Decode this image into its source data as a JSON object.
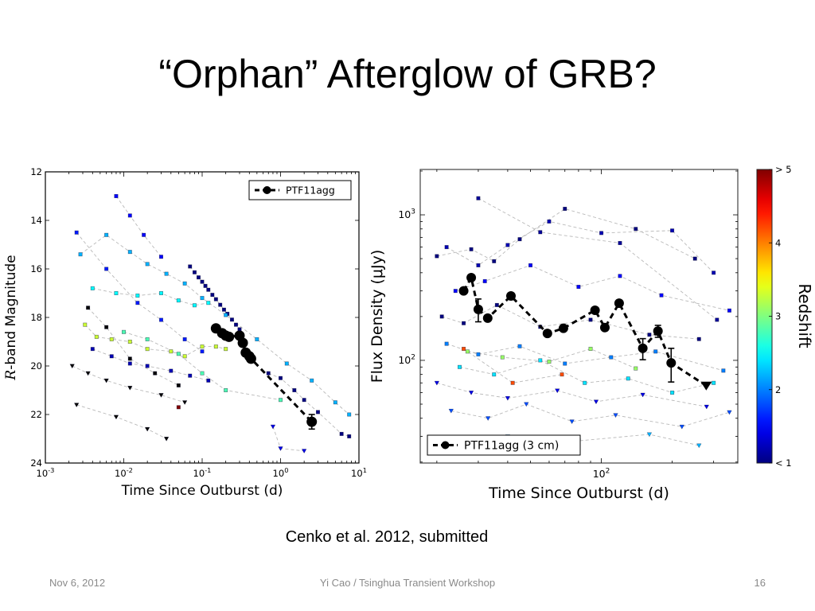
{
  "slide": {
    "title": "“Orphan” Afterglow of GRB?",
    "caption": "Cenko et al. 2012, submitted",
    "footer": {
      "date": "Nov 6, 2012",
      "center": "Yi Cao / Tsinghua Transient Workshop",
      "page": "16"
    }
  },
  "chart_data": [
    {
      "type": "scatter",
      "xlabel": "Time Since Outburst (d)",
      "ylabel_symbol": "R",
      "ylabel_rest": "-band Magnitude",
      "xscale": "log",
      "yscale": "linear",
      "xlim": [
        0.001,
        10
      ],
      "ylim": [
        12,
        24
      ],
      "y_inverted": true,
      "grid": false,
      "xticks": [
        {
          "value": 0.001,
          "base": "10",
          "exp": "-3"
        },
        {
          "value": 0.01,
          "base": "10",
          "exp": "-2"
        },
        {
          "value": 0.1,
          "base": "10",
          "exp": "-1"
        },
        {
          "value": 1,
          "base": "10",
          "exp": "0"
        },
        {
          "value": 10,
          "base": "10",
          "exp": "1"
        }
      ],
      "yticks": [
        12,
        14,
        16,
        18,
        20,
        22,
        24
      ],
      "legend": {
        "label": "PTF11agg",
        "placement": "top-right"
      },
      "highlight": {
        "points": [
          {
            "t": 0.15,
            "v": 18.45
          },
          {
            "t": 0.18,
            "v": 18.65
          },
          {
            "t": 0.2,
            "v": 18.75
          },
          {
            "t": 0.22,
            "v": 18.8
          },
          {
            "t": 0.3,
            "v": 18.75
          },
          {
            "t": 0.33,
            "v": 19.05
          },
          {
            "t": 0.36,
            "v": 19.45
          },
          {
            "t": 0.4,
            "v": 19.6
          },
          {
            "t": 0.42,
            "v": 19.7
          },
          {
            "t": 2.5,
            "v": 22.3,
            "err": 0.3
          }
        ],
        "limits": []
      },
      "background": [
        {
          "z": 0.9,
          "marker": "square",
          "points": [
            [
              0.07,
              15.9
            ],
            [
              0.08,
              16.14
            ],
            [
              0.09,
              16.35
            ],
            [
              0.1,
              16.53
            ],
            [
              0.11,
              16.7
            ],
            [
              0.12,
              16.86
            ],
            [
              0.135,
              17.07
            ],
            [
              0.15,
              17.25
            ],
            [
              0.17,
              17.48
            ],
            [
              0.19,
              17.68
            ],
            [
              0.21,
              17.85
            ],
            [
              0.24,
              18.09
            ],
            [
              0.27,
              18.3
            ],
            [
              0.3,
              18.49
            ]
          ]
        },
        {
          "z": 2.2,
          "marker": "square",
          "points": [
            [
              0.0028,
              15.4
            ],
            [
              0.006,
              14.6
            ],
            [
              0.012,
              15.3
            ],
            [
              0.02,
              15.8
            ],
            [
              0.035,
              16.2
            ],
            [
              0.06,
              16.6
            ],
            [
              0.1,
              17.2
            ],
            [
              0.2,
              17.9
            ],
            [
              0.5,
              18.9
            ],
            [
              1.2,
              19.9
            ],
            [
              2.5,
              20.6
            ],
            [
              5,
              21.5
            ],
            [
              7.5,
              22.0
            ]
          ]
        },
        {
          "z": 2.5,
          "marker": "square",
          "points": [
            [
              0.004,
              16.8
            ],
            [
              0.008,
              17.0
            ],
            [
              0.015,
              17.1
            ],
            [
              0.03,
              17.0
            ],
            [
              0.05,
              17.3
            ],
            [
              0.08,
              17.5
            ],
            [
              0.12,
              17.4
            ]
          ]
        },
        {
          "z": 3.3,
          "marker": "square",
          "points": [
            [
              0.0032,
              18.3
            ],
            [
              0.0045,
              18.8
            ],
            [
              0.007,
              18.9
            ],
            [
              0.012,
              19.0
            ],
            [
              0.02,
              19.3
            ],
            [
              0.04,
              19.4
            ],
            [
              0.06,
              19.6
            ],
            [
              0.1,
              19.2
            ],
            [
              0.15,
              19.2
            ],
            [
              0.2,
              19.3
            ]
          ]
        },
        {
          "z": 1.5,
          "marker": "square",
          "points": [
            [
              0.008,
              13.0
            ],
            [
              0.012,
              13.8
            ],
            [
              0.018,
              14.6
            ],
            [
              0.03,
              15.5
            ]
          ]
        },
        {
          "z": 1.6,
          "marker": "square",
          "points": [
            [
              0.0025,
              14.5
            ],
            [
              0.006,
              16.0
            ],
            [
              0.015,
              17.4
            ],
            [
              0.03,
              18.1
            ],
            [
              0.06,
              18.9
            ],
            [
              0.1,
              19.4
            ]
          ]
        },
        {
          "z": 1.2,
          "marker": "square",
          "points": [
            [
              0.004,
              19.3
            ],
            [
              0.007,
              19.6
            ],
            [
              0.012,
              19.9
            ],
            [
              0.02,
              20.0
            ],
            [
              0.04,
              20.2
            ],
            [
              0.07,
              20.4
            ],
            [
              0.12,
              20.6
            ]
          ]
        },
        {
          "z": 0.8,
          "marker": "square",
          "points": [
            [
              0.7,
              20.3
            ],
            [
              1.0,
              20.5
            ],
            [
              1.5,
              21.0
            ],
            [
              2.0,
              21.4
            ],
            [
              3.0,
              21.9
            ],
            [
              6.0,
              22.8
            ],
            [
              7.5,
              22.9
            ]
          ]
        },
        {
          "z": 2.8,
          "marker": "square",
          "points": [
            [
              0.01,
              18.6
            ],
            [
              0.02,
              18.9
            ],
            [
              0.05,
              19.5
            ],
            [
              0.1,
              20.3
            ],
            [
              0.2,
              21.0
            ],
            [
              1.0,
              21.4
            ]
          ]
        },
        {
          "z": null,
          "marker": "square",
          "points": [
            [
              0.0035,
              17.6
            ],
            [
              0.006,
              18.4
            ],
            [
              0.012,
              19.7
            ],
            [
              0.025,
              20.3
            ],
            [
              0.05,
              20.8
            ]
          ]
        },
        {
          "z": null,
          "marker": "triangle",
          "points": [
            [
              0.0022,
              20.0
            ],
            [
              0.0035,
              20.3
            ],
            [
              0.006,
              20.6
            ],
            [
              0.012,
              20.9
            ],
            [
              0.03,
              21.2
            ],
            [
              0.06,
              21.5
            ]
          ]
        },
        {
          "z": null,
          "marker": "triangle",
          "points": [
            [
              0.0025,
              21.6
            ],
            [
              0.008,
              22.1
            ],
            [
              0.02,
              22.6
            ],
            [
              0.035,
              23.0
            ]
          ]
        },
        {
          "z": 1.4,
          "marker": "triangle",
          "points": [
            [
              0.8,
              22.5
            ],
            [
              1.0,
              23.4
            ],
            [
              2.0,
              23.5
            ]
          ]
        },
        {
          "z": 5,
          "marker": "square",
          "points": [
            [
              0.05,
              21.7
            ]
          ]
        }
      ]
    },
    {
      "type": "scatter",
      "xlabel": "Time Since Outburst (d)",
      "ylabel": "Flux Density (μJy)",
      "xscale": "log",
      "yscale": "log",
      "xlim": [
        17,
        380
      ],
      "ylim": [
        19.7,
        2050
      ],
      "y_inverted": false,
      "grid": false,
      "xticks": [
        {
          "value": 100,
          "base": "10",
          "exp": "2"
        }
      ],
      "yticks": [
        {
          "value": 100,
          "base": "10",
          "exp": "2"
        },
        {
          "value": 1000,
          "base": "10",
          "exp": "3"
        }
      ],
      "legend": {
        "label": "PTF11agg (3 cm)",
        "placement": "bottom-left"
      },
      "highlight": {
        "points": [
          {
            "t": 26,
            "v": 300
          },
          {
            "t": 28,
            "v": 370
          },
          {
            "t": 30,
            "v": 224,
            "err": 40
          },
          {
            "t": 32.9,
            "v": 195
          },
          {
            "t": 41.3,
            "v": 277
          },
          {
            "t": 59,
            "v": 153
          },
          {
            "t": 69,
            "v": 166
          },
          {
            "t": 94,
            "v": 221
          },
          {
            "t": 103.5,
            "v": 168
          },
          {
            "t": 119,
            "v": 247
          },
          {
            "t": 150,
            "v": 121,
            "err": 20
          },
          {
            "t": 174,
            "v": 159,
            "err": 15
          },
          {
            "t": 198,
            "v": 96,
            "err": 25
          }
        ],
        "limits": [
          {
            "t": 279,
            "v": 67
          }
        ]
      },
      "background": [
        {
          "z": 1.2,
          "marker": "square",
          "points": [
            [
              22,
              600
            ],
            [
              30,
              450
            ],
            [
              40,
              620
            ],
            [
              60,
              900
            ],
            [
              100,
              750
            ],
            [
              200,
              780
            ],
            [
              300,
              400
            ]
          ]
        },
        {
          "z": 0.9,
          "marker": "square",
          "points": [
            [
              20,
              520
            ],
            [
              28,
              580
            ],
            [
              35,
              480
            ],
            [
              45,
              680
            ],
            [
              70,
              1100
            ],
            [
              140,
              800
            ],
            [
              250,
              500
            ]
          ]
        },
        {
          "z": 1.5,
          "marker": "square",
          "points": [
            [
              24,
              300
            ],
            [
              32,
              350
            ],
            [
              50,
              450
            ],
            [
              80,
              320
            ],
            [
              120,
              380
            ],
            [
              180,
              280
            ],
            [
              350,
              220
            ]
          ]
        },
        {
          "z": 2.0,
          "marker": "square",
          "points": [
            [
              22,
              130
            ],
            [
              30,
              110
            ],
            [
              45,
              125
            ],
            [
              70,
              95
            ],
            [
              110,
              105
            ],
            [
              170,
              115
            ],
            [
              330,
              85
            ]
          ]
        },
        {
          "z": 2.4,
          "marker": "square",
          "points": [
            [
              25,
              90
            ],
            [
              35,
              80
            ],
            [
              55,
              100
            ],
            [
              85,
              70
            ],
            [
              130,
              75
            ],
            [
              200,
              60
            ],
            [
              300,
              70
            ]
          ]
        },
        {
          "z": 1.4,
          "marker": "triangle",
          "points": [
            [
              20,
              70
            ],
            [
              28,
              60
            ],
            [
              40,
              55
            ],
            [
              65,
              62
            ],
            [
              95,
              52
            ],
            [
              150,
              58
            ],
            [
              280,
              48
            ]
          ]
        },
        {
          "z": 1.8,
          "marker": "triangle",
          "points": [
            [
              23,
              45
            ],
            [
              33,
              40
            ],
            [
              48,
              50
            ],
            [
              75,
              38
            ],
            [
              115,
              42
            ],
            [
              220,
              35
            ],
            [
              350,
              44
            ]
          ]
        },
        {
          "z": 3.1,
          "marker": "square",
          "points": [
            [
              27,
              115
            ],
            [
              38,
              105
            ],
            [
              60,
              98
            ],
            [
              90,
              120
            ],
            [
              140,
              88
            ]
          ]
        },
        {
          "z": 0.8,
          "marker": "square",
          "points": [
            [
              21,
              200
            ],
            [
              26,
              180
            ],
            [
              36,
              240
            ],
            [
              55,
              170
            ],
            [
              90,
              190
            ],
            [
              160,
              150
            ],
            [
              260,
              140
            ]
          ]
        },
        {
          "z": 4.2,
          "marker": "square",
          "points": [
            [
              26,
              120
            ],
            [
              42,
              70
            ],
            [
              68,
              80
            ]
          ]
        },
        {
          "z": 1.1,
          "marker": "square",
          "points": [
            [
              30,
              1300
            ],
            [
              55,
              760
            ],
            [
              120,
              640
            ],
            [
              310,
              190
            ]
          ]
        },
        {
          "z": 2.2,
          "marker": "triangle",
          "points": [
            [
              40,
              30
            ],
            [
              80,
              28
            ],
            [
              160,
              31
            ],
            [
              260,
              26
            ]
          ]
        }
      ],
      "colorbar": {
        "label": "Redshift",
        "range": [
          1,
          5
        ],
        "colormap": "jet",
        "ticks": [
          {
            "value": 5,
            "label": "> 5"
          },
          {
            "value": 4,
            "label": "4"
          },
          {
            "value": 3,
            "label": "3"
          },
          {
            "value": 2,
            "label": "2"
          },
          {
            "value": 1,
            "label": "< 1"
          }
        ]
      }
    }
  ]
}
